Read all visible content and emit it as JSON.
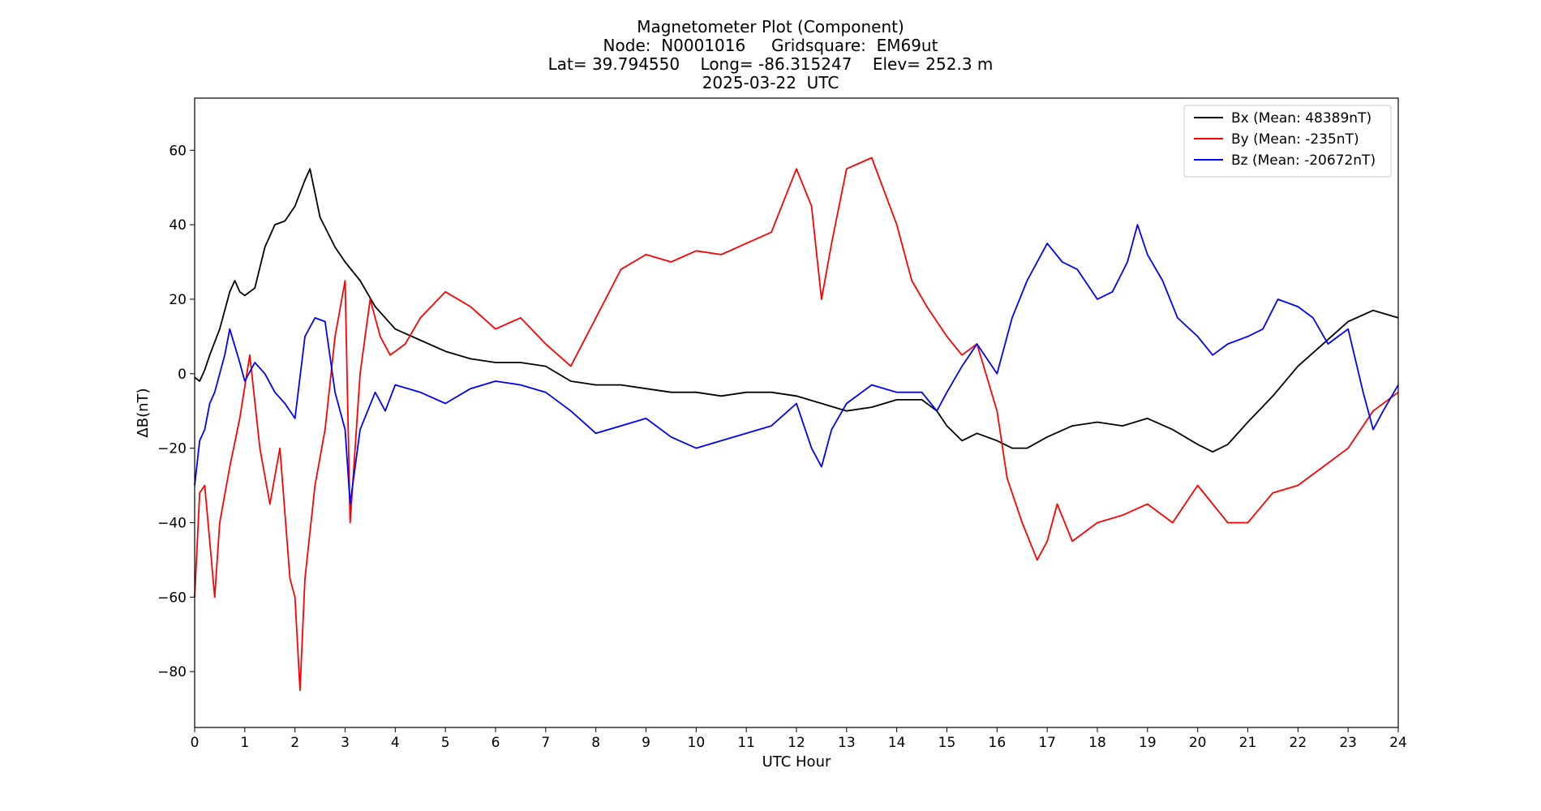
{
  "chart_data": {
    "type": "line",
    "title": "Magnetometer Plot (Component)",
    "subtitle_lines": [
      "Node:  N0001016     Gridsquare:  EM69ut",
      "Lat= 39.794550    Long= -86.315247    Elev= 252.3 m",
      "2025-03-22  UTC"
    ],
    "xlabel": "UTC Hour",
    "ylabel": "ΔB(nT)",
    "xlim": [
      0,
      24
    ],
    "ylim": [
      -95,
      74
    ],
    "xticks": [
      0,
      1,
      2,
      3,
      4,
      5,
      6,
      7,
      8,
      9,
      10,
      11,
      12,
      13,
      14,
      15,
      16,
      17,
      18,
      19,
      20,
      21,
      22,
      23,
      24
    ],
    "yticks": [
      -80,
      -60,
      -40,
      -20,
      0,
      20,
      40,
      60
    ],
    "grid": false,
    "legend_position": "top-right",
    "series": [
      {
        "name": "Bx (Mean: 48389nT)",
        "color": "#000000",
        "x": [
          0,
          0.1,
          0.2,
          0.3,
          0.5,
          0.7,
          0.8,
          0.9,
          1.0,
          1.2,
          1.4,
          1.6,
          1.8,
          2.0,
          2.2,
          2.3,
          2.5,
          2.8,
          3.0,
          3.3,
          3.6,
          4.0,
          4.5,
          5.0,
          5.5,
          6.0,
          6.5,
          7.0,
          7.5,
          8.0,
          8.5,
          9.0,
          9.5,
          10.0,
          10.5,
          11.0,
          11.5,
          12.0,
          12.5,
          13.0,
          13.5,
          14.0,
          14.5,
          14.8,
          15.0,
          15.3,
          15.6,
          16.0,
          16.3,
          16.6,
          17.0,
          17.5,
          18.0,
          18.5,
          19.0,
          19.5,
          20.0,
          20.3,
          20.6,
          21.0,
          21.5,
          22.0,
          22.5,
          23.0,
          23.5,
          24.0
        ],
        "values": [
          -1,
          -2,
          1,
          5,
          12,
          22,
          25,
          22,
          21,
          23,
          34,
          40,
          41,
          45,
          52,
          55,
          42,
          34,
          30,
          25,
          18,
          12,
          9,
          6,
          4,
          3,
          3,
          2,
          -2,
          -3,
          -3,
          -4,
          -5,
          -5,
          -6,
          -5,
          -5,
          -6,
          -8,
          -10,
          -9,
          -7,
          -7,
          -10,
          -14,
          -18,
          -16,
          -18,
          -20,
          -20,
          -17,
          -14,
          -13,
          -14,
          -12,
          -15,
          -19,
          -21,
          -19,
          -13,
          -6,
          2,
          8,
          14,
          17,
          15
        ]
      },
      {
        "name": "By (Mean: -235nT)",
        "color": "#ff0000",
        "x": [
          0,
          0.1,
          0.2,
          0.3,
          0.4,
          0.5,
          0.7,
          0.9,
          1.1,
          1.3,
          1.5,
          1.7,
          1.9,
          2.0,
          2.1,
          2.2,
          2.4,
          2.6,
          2.8,
          3.0,
          3.1,
          3.3,
          3.5,
          3.7,
          3.9,
          4.2,
          4.5,
          5.0,
          5.5,
          6.0,
          6.5,
          7.0,
          7.5,
          8.0,
          8.5,
          9.0,
          9.5,
          10.0,
          10.5,
          11.0,
          11.5,
          12.0,
          12.3,
          12.5,
          12.7,
          13.0,
          13.5,
          14.0,
          14.3,
          14.6,
          15.0,
          15.3,
          15.6,
          16.0,
          16.2,
          16.5,
          16.8,
          17.0,
          17.2,
          17.5,
          18.0,
          18.5,
          19.0,
          19.5,
          20.0,
          20.3,
          20.6,
          21.0,
          21.5,
          22.0,
          22.5,
          23.0,
          23.5,
          24.0
        ],
        "values": [
          -60,
          -32,
          -30,
          -45,
          -60,
          -40,
          -25,
          -12,
          5,
          -20,
          -35,
          -20,
          -55,
          -60,
          -85,
          -55,
          -30,
          -15,
          10,
          25,
          -40,
          0,
          20,
          10,
          5,
          8,
          15,
          22,
          18,
          12,
          15,
          8,
          2,
          15,
          28,
          32,
          30,
          33,
          32,
          35,
          38,
          55,
          45,
          20,
          35,
          55,
          58,
          40,
          25,
          18,
          10,
          5,
          8,
          -10,
          -28,
          -40,
          -50,
          -45,
          -35,
          -45,
          -40,
          -38,
          -35,
          -40,
          -30,
          -35,
          -40,
          -40,
          -32,
          -30,
          -25,
          -20,
          -10,
          -5
        ]
      },
      {
        "name": "Bz (Mean: -20672nT)",
        "color": "#0000ff",
        "x": [
          0,
          0.1,
          0.2,
          0.3,
          0.4,
          0.5,
          0.6,
          0.7,
          0.9,
          1.0,
          1.2,
          1.4,
          1.6,
          1.8,
          2.0,
          2.2,
          2.4,
          2.6,
          2.8,
          3.0,
          3.1,
          3.3,
          3.6,
          3.8,
          4.0,
          4.5,
          5.0,
          5.5,
          6.0,
          6.5,
          7.0,
          7.5,
          8.0,
          8.5,
          9.0,
          9.5,
          10.0,
          10.5,
          11.0,
          11.5,
          12.0,
          12.3,
          12.5,
          12.7,
          13.0,
          13.5,
          14.0,
          14.5,
          14.8,
          15.0,
          15.3,
          15.6,
          16.0,
          16.3,
          16.6,
          17.0,
          17.3,
          17.6,
          18.0,
          18.3,
          18.6,
          18.8,
          19.0,
          19.3,
          19.6,
          20.0,
          20.3,
          20.6,
          21.0,
          21.3,
          21.6,
          22.0,
          22.3,
          22.6,
          23.0,
          23.3,
          23.5,
          23.7,
          24.0
        ],
        "values": [
          -30,
          -18,
          -15,
          -8,
          -5,
          0,
          5,
          12,
          3,
          -2,
          3,
          0,
          -5,
          -8,
          -12,
          10,
          15,
          14,
          -5,
          -15,
          -35,
          -15,
          -5,
          -10,
          -3,
          -5,
          -8,
          -4,
          -2,
          -3,
          -5,
          -10,
          -16,
          -14,
          -12,
          -17,
          -20,
          -18,
          -16,
          -14,
          -8,
          -20,
          -25,
          -15,
          -8,
          -3,
          -5,
          -5,
          -10,
          -5,
          2,
          8,
          0,
          15,
          25,
          35,
          30,
          28,
          20,
          22,
          30,
          40,
          32,
          25,
          15,
          10,
          5,
          8,
          10,
          12,
          20,
          18,
          15,
          8,
          12,
          -5,
          -15,
          -10,
          -3
        ]
      }
    ]
  }
}
